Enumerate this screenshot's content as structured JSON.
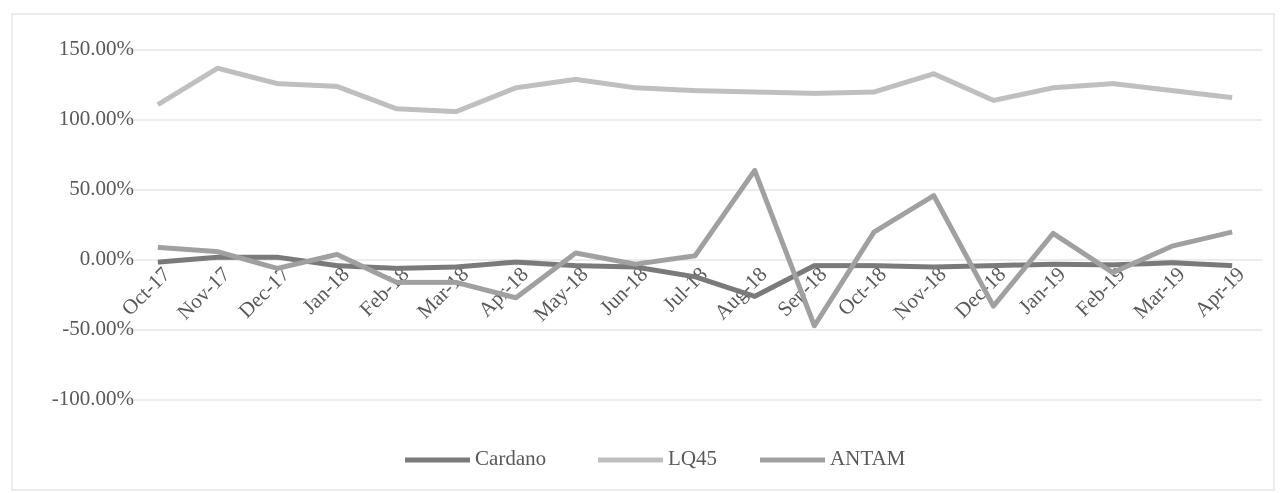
{
  "chart_data": {
    "type": "line",
    "categories": [
      "Oct-17",
      "Nov-17",
      "Dec-17",
      "Jan-18",
      "Feb-18",
      "Mar-18",
      "Apr-18",
      "May-18",
      "Jun-18",
      "Jul-18",
      "Aug-18",
      "Sep-18",
      "Oct-18",
      "Nov-18",
      "Dec-18",
      "Jan-19",
      "Feb-19",
      "Mar-19",
      "Apr-19"
    ],
    "series": [
      {
        "name": "Cardano",
        "color": "#7a7a7a",
        "values": [
          -1.5,
          2,
          2,
          -4,
          -6,
          -5,
          -1.5,
          -4,
          -5,
          -12,
          -26,
          -4,
          -4,
          -5,
          -4,
          -3,
          -3.5,
          -2,
          -4
        ]
      },
      {
        "name": "LQ45",
        "color": "#bfbfbf",
        "values": [
          111,
          137,
          126,
          124,
          108,
          106,
          123,
          129,
          123,
          121,
          120,
          119,
          120,
          133,
          114,
          123,
          126,
          121,
          116
        ]
      },
      {
        "name": "ANTAM",
        "color": "#a0a0a0",
        "values": [
          9,
          6,
          -6,
          4,
          -16,
          -16,
          -27,
          5,
          -3,
          3,
          64,
          -47,
          20,
          46,
          -33,
          19,
          -9,
          10,
          20
        ]
      }
    ],
    "ylim": [
      -100,
      150
    ],
    "yticks": [
      {
        "value": -100,
        "label": "-100.00%"
      },
      {
        "value": -50,
        "label": "-50.00%"
      },
      {
        "value": 0,
        "label": "0.00%"
      },
      {
        "value": 50,
        "label": "50.00%"
      },
      {
        "value": 100,
        "label": "100.00%"
      },
      {
        "value": 150,
        "label": "150.00%"
      }
    ],
    "grid": true,
    "legend": "bottom"
  }
}
